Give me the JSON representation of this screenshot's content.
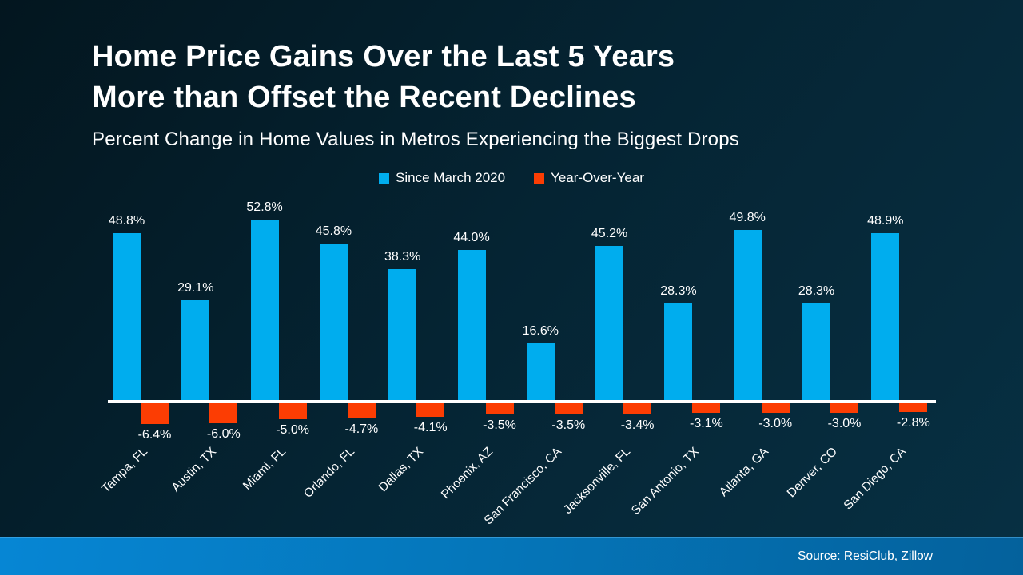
{
  "header": {
    "title_line1": "Home Price Gains Over the Last 5 Years",
    "title_line2": "More than Offset the Recent Declines",
    "subtitle": "Percent Change in Home Values in Metros Experiencing the Biggest Drops"
  },
  "legend": {
    "items": [
      {
        "label": "Since March 2020",
        "color": "#00adee"
      },
      {
        "label": "Year-Over-Year",
        "color": "#fc3d03"
      }
    ]
  },
  "chart_data": {
    "type": "bar",
    "title": "Home Price Gains Over the Last 5 Years More than Offset the Recent Declines",
    "subtitle": "Percent Change in Home Values in Metros Experiencing the Biggest Drops",
    "categories": [
      "Tampa, FL",
      "Austin, TX",
      "Miami, FL",
      "Orlando, FL",
      "Dallas, TX",
      "Phoenix, AZ",
      "San Francisco, CA",
      "Jacksonville, FL",
      "San Antonio, TX",
      "Atlanta, GA",
      "Denver, CO",
      "San Diego, CA"
    ],
    "series": [
      {
        "name": "Since March 2020",
        "color": "#00adee",
        "values": [
          48.8,
          29.1,
          52.8,
          45.8,
          38.3,
          44.0,
          16.6,
          45.2,
          28.3,
          49.8,
          28.3,
          48.9
        ]
      },
      {
        "name": "Year-Over-Year",
        "color": "#fc3d03",
        "values": [
          -6.4,
          -6.0,
          -5.0,
          -4.7,
          -4.1,
          -3.5,
          -3.5,
          -3.4,
          -3.1,
          -3.0,
          -3.0,
          -2.8
        ]
      }
    ],
    "value_label_format": "one-decimal-percent",
    "xlabel": "",
    "ylabel": "",
    "ylim": [
      -10,
      60
    ],
    "grid": false,
    "legend_position": "top-center",
    "axis_line_color": "#ffffff"
  },
  "footer": {
    "source": "Source: ResiClub, Zillow"
  },
  "colors": {
    "background_start": "#03161f",
    "background_end": "#073043",
    "bar_positive": "#00adee",
    "bar_negative": "#fc3d03",
    "text": "#ffffff",
    "footer_left": "#0686d4",
    "footer_right": "#04619c"
  }
}
